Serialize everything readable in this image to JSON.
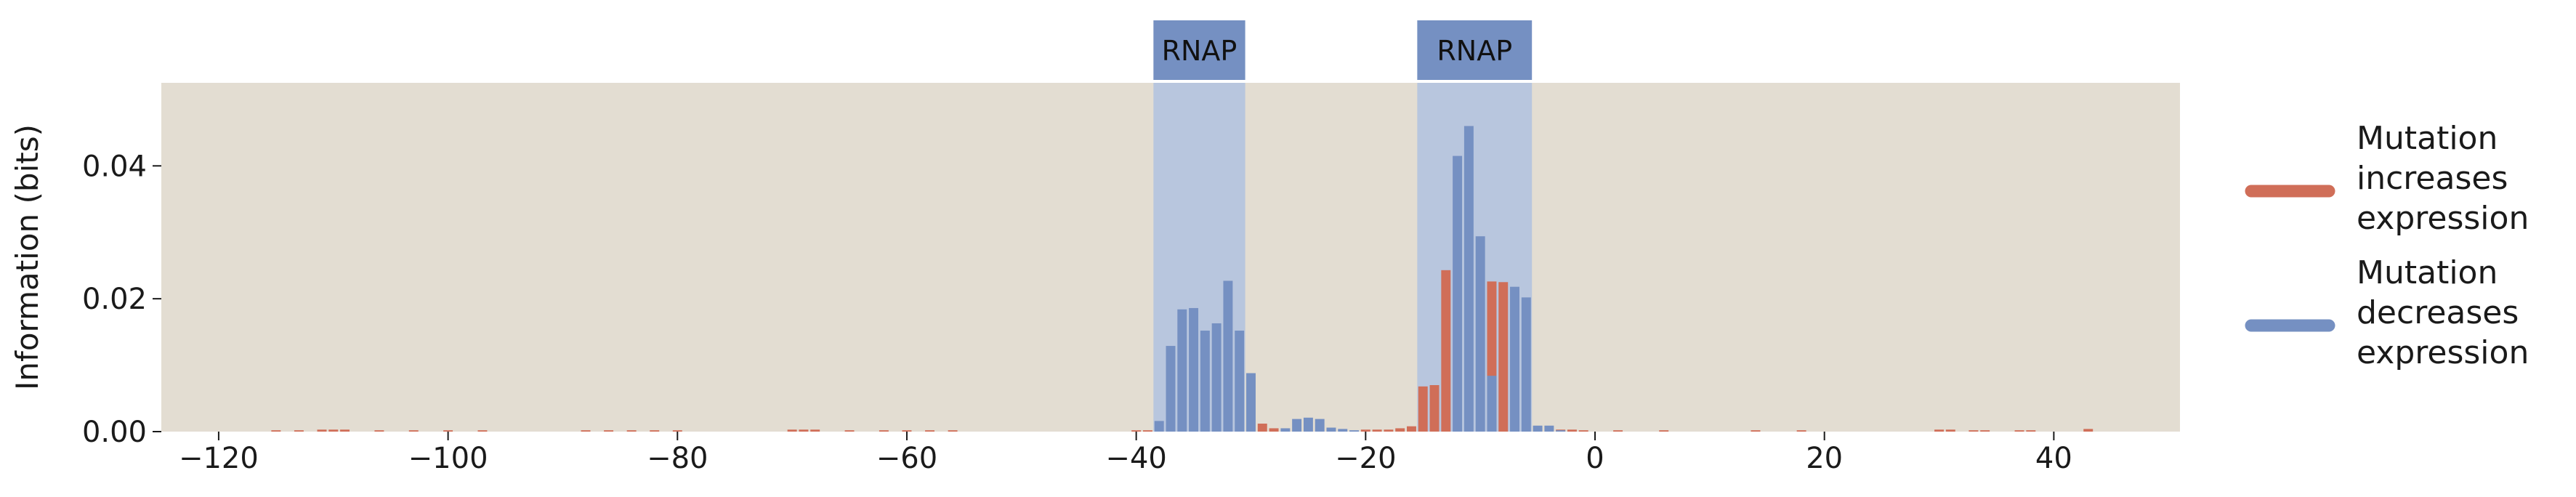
{
  "colors": {
    "background": "#e3ddd2",
    "increase": "#d06e58",
    "decrease": "#7590c2",
    "region_fill": "#b8c6de",
    "region_label_fill": "#7590c2"
  },
  "chart_data": {
    "type": "bar",
    "title": "",
    "xlabel": "",
    "ylabel": "Information (bits)",
    "xlim": [
      -125,
      51
    ],
    "ylim": [
      0,
      0.0525
    ],
    "x_ticks": [
      -120,
      -100,
      -80,
      -60,
      -40,
      -20,
      0,
      20,
      40
    ],
    "x_tick_labels": [
      "−120",
      "−100",
      "−80",
      "−60",
      "−40",
      "−20",
      "0",
      "20",
      "40"
    ],
    "y_ticks": [
      0,
      0.02,
      0.04
    ],
    "y_tick_labels": [
      "0.00",
      "0.02",
      "0.04"
    ],
    "grid": false,
    "legend_position": "right",
    "regions": [
      {
        "label": "RNAP",
        "x_start": -38.5,
        "x_end": -30.5
      },
      {
        "label": "RNAP",
        "x_start": -15.5,
        "x_end": -5.5
      }
    ],
    "series": [
      {
        "name": "Mutation increases expression",
        "legend_lines": [
          "Mutation",
          "increases",
          "expression"
        ],
        "color": "#d06e58",
        "x": [
          -115,
          -113,
          -111,
          -110,
          -109,
          -106,
          -103,
          -100,
          -97,
          -88,
          -86,
          -84,
          -82,
          -80,
          -70,
          -69,
          -68,
          -65,
          -62,
          -60,
          -58,
          -56,
          -40,
          -39,
          -29,
          -28,
          -20,
          -19,
          -18,
          -17,
          -16,
          -15,
          -14,
          -13,
          -9,
          -8,
          -3,
          -2,
          -1,
          2,
          6,
          14,
          18,
          30,
          31,
          33,
          34,
          37,
          38,
          43
        ],
        "values": [
          0.0002,
          0.0002,
          0.0003,
          0.0003,
          0.0003,
          0.0002,
          0.0002,
          0.0002,
          0.0002,
          0.0002,
          0.0002,
          0.0002,
          0.0002,
          0.0002,
          0.0003,
          0.0003,
          0.0003,
          0.0002,
          0.0002,
          0.0002,
          0.0002,
          0.0002,
          0.0002,
          0.0002,
          0.0012,
          0.0005,
          0.0003,
          0.0003,
          0.0003,
          0.0005,
          0.0008,
          0.0068,
          0.007,
          0.0243,
          0.0226,
          0.0225,
          0.0003,
          0.0003,
          0.0002,
          0.0002,
          0.0002,
          0.0002,
          0.0002,
          0.0003,
          0.0003,
          0.0002,
          0.0002,
          0.0002,
          0.0002,
          0.0004
        ]
      },
      {
        "name": "Mutation decreases expression",
        "legend_lines": [
          "Mutation",
          "decreases",
          "expression"
        ],
        "color": "#7590c2",
        "x": [
          -38,
          -37,
          -36,
          -35,
          -34,
          -33,
          -32,
          -31,
          -30,
          -27,
          -26,
          -25,
          -24,
          -23,
          -22,
          -21,
          -12,
          -11,
          -10,
          -9,
          -7,
          -6,
          -5,
          -4,
          -3
        ],
        "values": [
          0.0016,
          0.0129,
          0.0184,
          0.0186,
          0.0152,
          0.0163,
          0.0227,
          0.0152,
          0.0088,
          0.0005,
          0.0019,
          0.0021,
          0.0019,
          0.0006,
          0.0004,
          0.0002,
          0.0415,
          0.046,
          0.0294,
          0.0084,
          0.0218,
          0.0202,
          0.0009,
          0.0009,
          0.0002
        ]
      }
    ]
  }
}
